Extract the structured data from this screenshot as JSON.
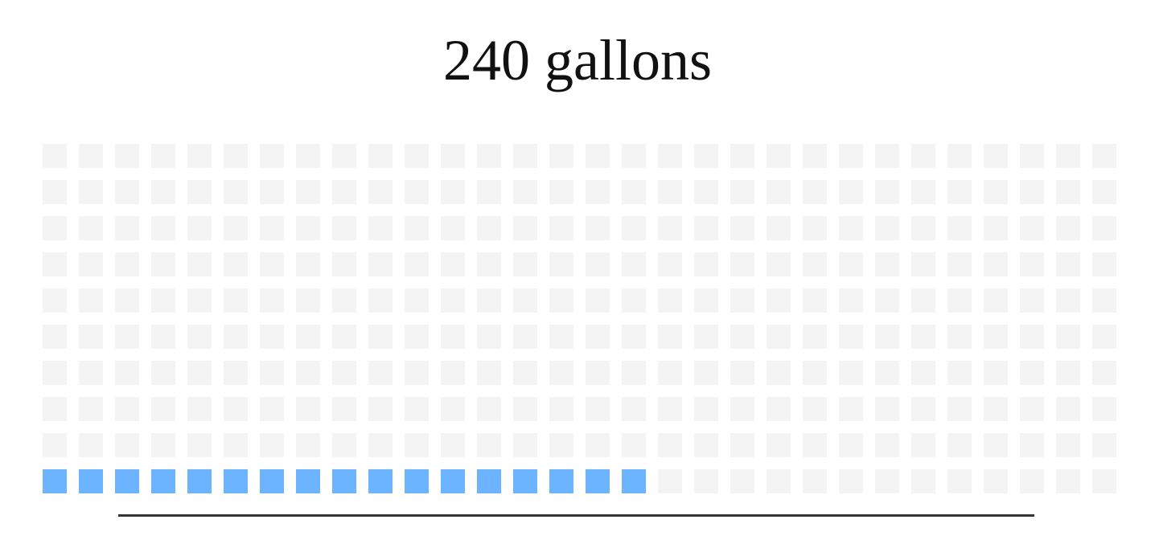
{
  "chart_data": {
    "type": "waffle",
    "title": "240 gallons",
    "columns": 30,
    "rows": 10,
    "filled": 17,
    "total": 300,
    "fill_from": "bottom-left",
    "colors": {
      "filled": "#6cb4ff",
      "empty": "#f4f4f4",
      "baseline": "#333333"
    }
  }
}
